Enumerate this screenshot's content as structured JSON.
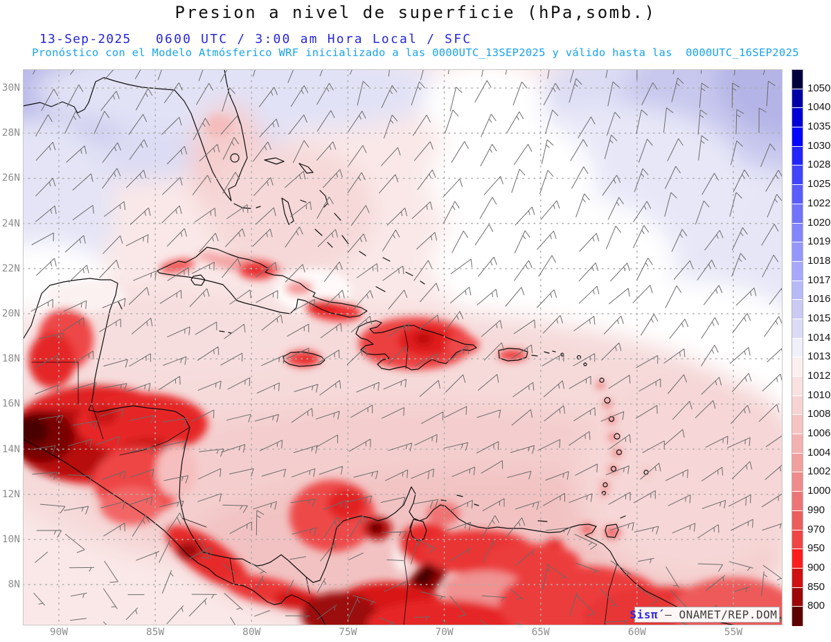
{
  "header": {
    "title": "Presion a nivel de superficie (hPa,somb.)",
    "date": "13-Sep-2025",
    "time_line": "0600 UTC / 3:00 am Hora Local / SFC",
    "forecast_line": "Pronóstico con el Modelo Atmósferico WRF inicializado a las 0000UTC_13SEP2025 y válido hasta las  0000UTC_16SEP2025"
  },
  "map": {
    "lat_labels": [
      "30N",
      "28N",
      "26N",
      "24N",
      "22N",
      "20N",
      "18N",
      "16N",
      "14N",
      "12N",
      "10N",
      "8N"
    ],
    "lon_labels": [
      "90W",
      "85W",
      "80W",
      "75W",
      "70W",
      "65W",
      "60W",
      "55W"
    ]
  },
  "colorbar": {
    "labels": [
      "1050",
      "1040",
      "1035",
      "1030",
      "1028",
      "1025",
      "1022",
      "1020",
      "1019",
      "1018",
      "1017",
      "1016",
      "1015",
      "1014",
      "1013",
      "1012",
      "1010",
      "1008",
      "1006",
      "1004",
      "1002",
      "1000",
      "990",
      "970",
      "950",
      "900",
      "850",
      "800"
    ],
    "colors": [
      "#00003E",
      "#0000A6",
      "#0000D6",
      "#0306FB",
      "#2224FC",
      "#4143FD",
      "#5A5CFD",
      "#7173FD",
      "#8385FD",
      "#9597FD",
      "#A7A8FB",
      "#B8B9F7",
      "#CACAF5",
      "#DBDBF5",
      "#F0F0FB",
      "#FCEFEF",
      "#FAE1E1",
      "#F8D3D3",
      "#F6C3C3",
      "#F4B1B1",
      "#F29F9F",
      "#F08B8B",
      "#EE7575",
      "#EC5D5D",
      "#F04545",
      "#FC1D1D",
      "#CF1111",
      "#9D0707",
      "#5E0101"
    ]
  },
  "attribution": {
    "brand": "Sisπ́",
    "rest": " — ONAMET/REP.DOM."
  },
  "colors": {
    "date_blue": "#2626DE",
    "forecast_cyan": "#18A2EE",
    "axis_gray": "#8E8E8E",
    "barb_gray": "#6A6A6A",
    "grid_gray": "#AEAEAE",
    "base_pink": "#FAE8E8"
  },
  "chart_data": {
    "type": "heatmap",
    "title": "Presion a nivel de superficie (hPa,somb.)",
    "units": "hPa",
    "valid_time": "13-Sep-2025 0600 UTC / 3:00 am Hora Local / SFC",
    "model": "WRF ONAMET, init 0000UTC_13SEP2025, valid until 0000UTC_16SEP2025",
    "lat_range_deg_n": [
      6.3,
      30.8
    ],
    "lon_range_deg_w": [
      91.9,
      52.5
    ],
    "scale_levels_hPa": [
      800,
      850,
      900,
      950,
      970,
      990,
      1000,
      1002,
      1004,
      1006,
      1008,
      1010,
      1012,
      1013,
      1014,
      1015,
      1016,
      1017,
      1018,
      1019,
      1020,
      1022,
      1025,
      1028,
      1030,
      1035,
      1040,
      1050
    ],
    "legend_position": "right",
    "grid": "dotted, 2deg lat x 5deg lon",
    "notable_features": [
      {
        "region": "NW Gulf of Mexico",
        "pressure_hPa": "1015-1017 (light blue)"
      },
      {
        "region": "NE Atlantic corner (high)",
        "pressure_hPa": "1016-1018 (blue)"
      },
      {
        "region": "Central Atlantic band",
        "pressure_hPa": "1013-1014 (white)"
      },
      {
        "region": "Caribbean Sea",
        "pressure_hPa": "1008-1012 (pale pink)"
      },
      {
        "region": "Cuba / Jamaica / Hispaniola / Puerto Rico interiors",
        "pressure_hPa": "970-1000 (red)"
      },
      {
        "region": "Guatemala-Honduras highlands",
        "pressure_hPa": "800-900 (dark red)"
      },
      {
        "region": "Andes of Colombia / Venezuela",
        "pressure_hPa": "800-900 (dark red)"
      }
    ]
  }
}
